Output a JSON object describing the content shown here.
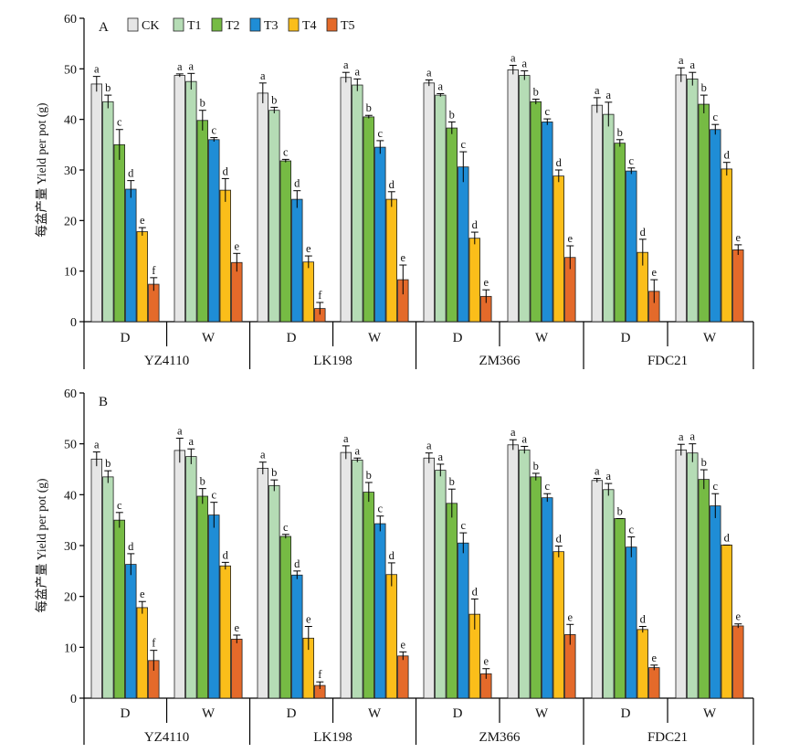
{
  "legend": [
    "CK",
    "T1",
    "T2",
    "T3",
    "T4",
    "T5"
  ],
  "colors": {
    "CK": "#e6e6e6",
    "T1": "#b5dcb5",
    "T2": "#76bb44",
    "T3": "#1f8dd6",
    "T4": "#fbbe1a",
    "T5": "#e46a2a"
  },
  "chart_data": [
    {
      "type": "bar",
      "panel_label": "A",
      "ylabel": "每盆产量 Yield per pot (g)",
      "ylim": [
        0,
        60
      ],
      "yticks": [
        "0",
        "10",
        "20",
        "30",
        "40",
        "50",
        "60"
      ],
      "varieties": [
        "YZ4110",
        "LK198",
        "ZM366",
        "FDC21"
      ],
      "conditions": [
        "D",
        "W"
      ],
      "groups": [
        {
          "variety": "YZ4110",
          "condition": "D",
          "values": [
            47.0,
            43.5,
            35.0,
            26.2,
            17.8,
            7.4
          ],
          "errors": [
            1.5,
            1.3,
            3.0,
            1.7,
            0.8,
            1.3
          ],
          "letters": [
            "a",
            "b",
            "c",
            "d",
            "e",
            "f"
          ]
        },
        {
          "variety": "YZ4110",
          "condition": "W",
          "values": [
            48.7,
            47.5,
            39.8,
            36.0,
            26.0,
            11.7
          ],
          "errors": [
            0.3,
            1.6,
            2.0,
            0.4,
            2.3,
            1.8
          ],
          "letters": [
            "a",
            "a",
            "b",
            "c",
            "d",
            "e"
          ]
        },
        {
          "variety": "LK198",
          "condition": "D",
          "values": [
            45.2,
            41.8,
            31.8,
            24.2,
            11.8,
            2.6
          ],
          "errors": [
            2.0,
            0.6,
            0.3,
            1.7,
            1.2,
            1.2
          ],
          "letters": [
            "a",
            "b",
            "c",
            "d",
            "e",
            "f"
          ]
        },
        {
          "variety": "LK198",
          "condition": "W",
          "values": [
            48.3,
            46.8,
            40.5,
            34.5,
            24.2,
            8.3
          ],
          "errors": [
            1.0,
            1.2,
            0.3,
            1.3,
            1.5,
            2.9
          ],
          "letters": [
            "a",
            "a",
            "b",
            "c",
            "d",
            "e"
          ]
        },
        {
          "variety": "ZM366",
          "condition": "D",
          "values": [
            47.2,
            44.8,
            38.3,
            30.6,
            16.5,
            5.0
          ],
          "errors": [
            0.6,
            0.3,
            1.2,
            3.0,
            1.2,
            1.3
          ],
          "letters": [
            "a",
            "a",
            "b",
            "c",
            "d",
            "e"
          ]
        },
        {
          "variety": "ZM366",
          "condition": "W",
          "values": [
            49.8,
            48.7,
            43.5,
            39.5,
            28.8,
            12.7
          ],
          "errors": [
            0.9,
            0.9,
            0.5,
            0.6,
            1.2,
            2.3
          ],
          "letters": [
            "a",
            "a",
            "b",
            "c",
            "d",
            "e"
          ]
        },
        {
          "variety": "FDC21",
          "condition": "D",
          "values": [
            42.8,
            41.0,
            35.3,
            29.8,
            13.7,
            6.0
          ],
          "errors": [
            1.5,
            2.4,
            0.7,
            0.6,
            2.6,
            2.3
          ],
          "letters": [
            "a",
            "a",
            "b",
            "c",
            "d",
            "e"
          ]
        },
        {
          "variety": "FDC21",
          "condition": "W",
          "values": [
            48.8,
            48.0,
            43.0,
            38.0,
            30.2,
            14.2
          ],
          "errors": [
            1.4,
            1.3,
            1.8,
            1.0,
            1.3,
            1.0
          ],
          "letters": [
            "a",
            "a",
            "b",
            "c",
            "d",
            "e"
          ]
        }
      ]
    },
    {
      "type": "bar",
      "panel_label": "B",
      "ylabel": "每盆产量 Yield per pot (g)",
      "ylim": [
        0,
        60
      ],
      "yticks": [
        "0",
        "10",
        "20",
        "30",
        "40",
        "50",
        "60"
      ],
      "varieties": [
        "YZ4110",
        "LK198",
        "ZM366",
        "FDC21"
      ],
      "conditions": [
        "D",
        "W"
      ],
      "groups": [
        {
          "variety": "YZ4110",
          "condition": "D",
          "values": [
            47.0,
            43.5,
            35.0,
            26.3,
            17.8,
            7.4
          ],
          "errors": [
            1.4,
            1.2,
            1.5,
            2.1,
            1.2,
            2.0
          ],
          "letters": [
            "a",
            "b",
            "c",
            "d",
            "e",
            "f"
          ]
        },
        {
          "variety": "YZ4110",
          "condition": "W",
          "values": [
            48.7,
            47.5,
            39.7,
            36.0,
            26.0,
            11.6
          ],
          "errors": [
            2.4,
            1.5,
            1.5,
            2.5,
            0.7,
            0.8
          ],
          "letters": [
            "a",
            "a",
            "b",
            "c",
            "d",
            "e"
          ]
        },
        {
          "variety": "LK198",
          "condition": "D",
          "values": [
            45.2,
            41.8,
            31.8,
            24.2,
            11.8,
            2.5
          ],
          "errors": [
            1.2,
            1.1,
            0.4,
            0.8,
            2.3,
            0.7
          ],
          "letters": [
            "a",
            "b",
            "c",
            "d",
            "e",
            "f"
          ]
        },
        {
          "variety": "LK198",
          "condition": "W",
          "values": [
            48.3,
            46.8,
            40.5,
            34.3,
            24.3,
            8.3
          ],
          "errors": [
            1.3,
            0.4,
            1.9,
            1.5,
            2.3,
            0.8
          ],
          "letters": [
            "a",
            "a",
            "b",
            "c",
            "d",
            "e"
          ]
        },
        {
          "variety": "ZM366",
          "condition": "D",
          "values": [
            47.2,
            44.8,
            38.3,
            30.5,
            16.5,
            4.8
          ],
          "errors": [
            1.0,
            1.2,
            2.8,
            2.0,
            3.0,
            1.0
          ],
          "letters": [
            "a",
            "a",
            "b",
            "c",
            "d",
            "e"
          ]
        },
        {
          "variety": "ZM366",
          "condition": "W",
          "values": [
            49.8,
            48.8,
            43.5,
            39.4,
            28.8,
            12.5
          ],
          "errors": [
            1.0,
            0.7,
            0.7,
            0.8,
            1.1,
            2.0
          ],
          "letters": [
            "a",
            "a",
            "b",
            "c",
            "d",
            "e"
          ]
        },
        {
          "variety": "FDC21",
          "condition": "D",
          "values": [
            42.8,
            41.0,
            35.3,
            29.7,
            13.5,
            6.0
          ],
          "errors": [
            0.4,
            1.2,
            0.0,
            2.0,
            0.6,
            0.5
          ],
          "letters": [
            "a",
            "a",
            "b",
            "c",
            "d",
            "e"
          ]
        },
        {
          "variety": "FDC21",
          "condition": "W",
          "values": [
            48.8,
            48.2,
            43.0,
            37.8,
            30.1,
            14.2
          ],
          "errors": [
            1.1,
            1.8,
            1.9,
            2.4,
            0.0,
            0.4
          ],
          "letters": [
            "a",
            "a",
            "b",
            "c",
            "d",
            "e"
          ]
        }
      ]
    }
  ]
}
